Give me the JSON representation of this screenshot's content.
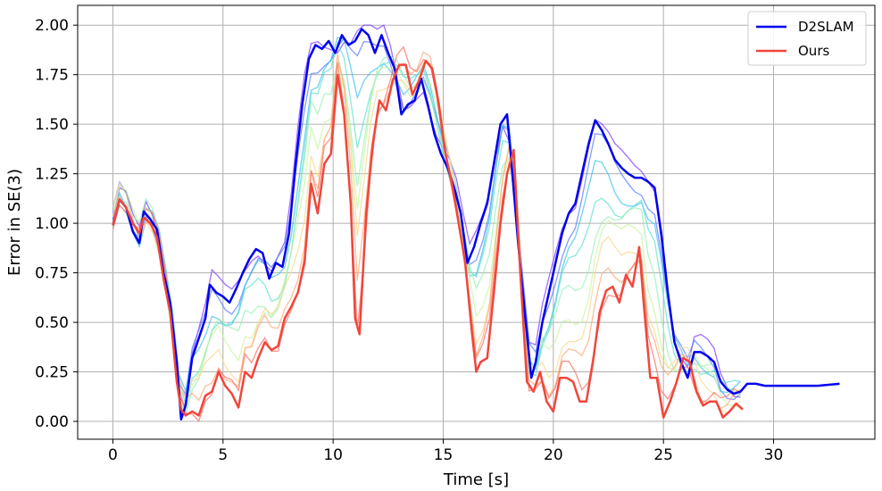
{
  "chart_data": {
    "type": "line",
    "xlabel": "Time [s]",
    "ylabel": "Error in SE(3)",
    "xlim": [
      -1.6,
      34.6
    ],
    "ylim": [
      -0.09,
      2.1
    ],
    "xticks": [
      "0",
      "5",
      "10",
      "15",
      "20",
      "25",
      "30"
    ],
    "xtick_values": [
      0,
      5,
      10,
      15,
      20,
      25,
      30
    ],
    "yticks": [
      "0.00",
      "0.25",
      "0.50",
      "0.75",
      "1.00",
      "1.25",
      "1.50",
      "1.75",
      "2.00"
    ],
    "ytick_values": [
      0,
      0.25,
      0.5,
      0.75,
      1.0,
      1.25,
      1.5,
      1.75,
      2.0
    ],
    "grid": true,
    "legend_position": "top-right",
    "legend": [
      "D2SLAM",
      "Ours"
    ],
    "series": [
      {
        "name": "D2SLAM",
        "color": "#0000ee",
        "x": [
          0,
          0.3,
          0.6,
          0.9,
          1.2,
          1.4,
          1.7,
          2.0,
          2.3,
          2.6,
          2.9,
          3.1,
          3.3,
          3.6,
          3.9,
          4.2,
          4.4,
          4.7,
          5.0,
          5.3,
          5.6,
          5.9,
          6.2,
          6.5,
          6.8,
          7.1,
          7.4,
          7.7,
          8.0,
          8.3,
          8.6,
          8.9,
          9.2,
          9.5,
          9.8,
          10.1,
          10.4,
          10.7,
          11.0,
          11.3,
          11.6,
          11.9,
          12.2,
          12.5,
          12.8,
          13.1,
          13.4,
          13.7,
          14.0,
          14.3,
          14.6,
          14.9,
          15.2,
          15.5,
          15.8,
          16.1,
          16.4,
          16.7,
          17.0,
          17.3,
          17.6,
          17.9,
          18.1,
          18.4,
          18.7,
          19.0,
          19.2,
          19.5,
          19.8,
          20.1,
          20.4,
          20.7,
          21.0,
          21.3,
          21.6,
          21.9,
          22.2,
          22.5,
          22.8,
          23.1,
          23.4,
          23.7,
          24.0,
          24.3,
          24.6,
          24.9,
          25.2,
          25.5,
          25.8,
          26.1,
          26.4,
          26.7,
          27.0,
          27.3,
          27.6,
          27.9,
          28.2,
          28.5,
          28.8,
          29.2,
          29.6,
          30.0,
          31.0,
          32.0,
          33.0
        ],
        "y": [
          0.99,
          1.12,
          1.08,
          0.96,
          0.9,
          1.06,
          1.02,
          0.97,
          0.75,
          0.6,
          0.3,
          0.01,
          0.08,
          0.32,
          0.42,
          0.52,
          0.69,
          0.65,
          0.63,
          0.6,
          0.67,
          0.75,
          0.82,
          0.87,
          0.85,
          0.72,
          0.8,
          0.78,
          0.95,
          1.3,
          1.6,
          1.83,
          1.9,
          1.88,
          1.92,
          1.86,
          1.95,
          1.9,
          1.92,
          1.98,
          1.95,
          1.86,
          1.95,
          1.86,
          1.78,
          1.55,
          1.6,
          1.62,
          1.73,
          1.6,
          1.45,
          1.35,
          1.28,
          1.18,
          1.05,
          0.8,
          0.88,
          1.0,
          1.1,
          1.3,
          1.5,
          1.55,
          1.3,
          0.9,
          0.55,
          0.22,
          0.3,
          0.5,
          0.65,
          0.8,
          0.95,
          1.05,
          1.1,
          1.25,
          1.4,
          1.52,
          1.47,
          1.4,
          1.32,
          1.28,
          1.25,
          1.23,
          1.23,
          1.21,
          1.18,
          0.95,
          0.65,
          0.4,
          0.3,
          0.22,
          0.35,
          0.35,
          0.33,
          0.3,
          0.2,
          0.16,
          0.14,
          0.15,
          0.19,
          0.19,
          0.18,
          0.18,
          0.18,
          0.18,
          0.19
        ]
      },
      {
        "name": "Ours",
        "color": "#f0463c",
        "x": [
          0,
          0.3,
          0.6,
          0.9,
          1.2,
          1.4,
          1.7,
          2.0,
          2.3,
          2.6,
          2.9,
          3.1,
          3.3,
          3.6,
          3.9,
          4.2,
          4.5,
          4.8,
          5.1,
          5.4,
          5.7,
          6.0,
          6.3,
          6.6,
          6.9,
          7.2,
          7.5,
          7.8,
          8.1,
          8.4,
          8.7,
          9.0,
          9.3,
          9.6,
          9.9,
          10.2,
          10.5,
          10.8,
          11.0,
          11.2,
          11.5,
          11.8,
          12.1,
          12.4,
          12.7,
          13.0,
          13.3,
          13.6,
          13.9,
          14.2,
          14.5,
          14.8,
          15.1,
          15.4,
          15.7,
          16.0,
          16.3,
          16.5,
          16.7,
          17.0,
          17.3,
          17.6,
          17.9,
          18.2,
          18.5,
          18.8,
          19.1,
          19.4,
          19.7,
          20.0,
          20.3,
          20.6,
          20.9,
          21.2,
          21.5,
          21.8,
          22.1,
          22.4,
          22.7,
          23.0,
          23.3,
          23.6,
          23.9,
          24.1,
          24.4,
          24.7,
          25.0,
          25.3,
          25.6,
          25.9,
          26.2,
          26.5,
          26.8,
          27.1,
          27.4,
          27.7,
          28.0,
          28.3,
          28.6
        ],
        "y": [
          0.99,
          1.12,
          1.08,
          1.0,
          0.95,
          1.03,
          1.0,
          0.93,
          0.72,
          0.55,
          0.2,
          0.06,
          0.03,
          0.05,
          0.03,
          0.13,
          0.15,
          0.25,
          0.18,
          0.14,
          0.07,
          0.25,
          0.22,
          0.32,
          0.4,
          0.36,
          0.38,
          0.52,
          0.58,
          0.65,
          0.8,
          1.2,
          1.05,
          1.3,
          1.35,
          1.75,
          1.55,
          1.1,
          0.52,
          0.44,
          1.05,
          1.4,
          1.62,
          1.57,
          1.72,
          1.8,
          1.8,
          1.65,
          1.72,
          1.82,
          1.78,
          1.6,
          1.35,
          1.2,
          1.0,
          0.8,
          0.45,
          0.25,
          0.3,
          0.32,
          0.65,
          1.0,
          1.25,
          1.37,
          0.75,
          0.2,
          0.15,
          0.25,
          0.1,
          0.05,
          0.22,
          0.22,
          0.2,
          0.1,
          0.1,
          0.3,
          0.55,
          0.66,
          0.68,
          0.6,
          0.74,
          0.68,
          0.88,
          0.6,
          0.22,
          0.22,
          0.02,
          0.1,
          0.2,
          0.32,
          0.3,
          0.15,
          0.08,
          0.1,
          0.1,
          0.02,
          0.05,
          0.09,
          0.06
        ]
      }
    ],
    "background_series_colors": [
      "#8040ff",
      "#5a7cff",
      "#40c0f0",
      "#60e0d0",
      "#9af0b8",
      "#c8f5a0",
      "#f8d890",
      "#ffa878",
      "#f87060"
    ]
  }
}
